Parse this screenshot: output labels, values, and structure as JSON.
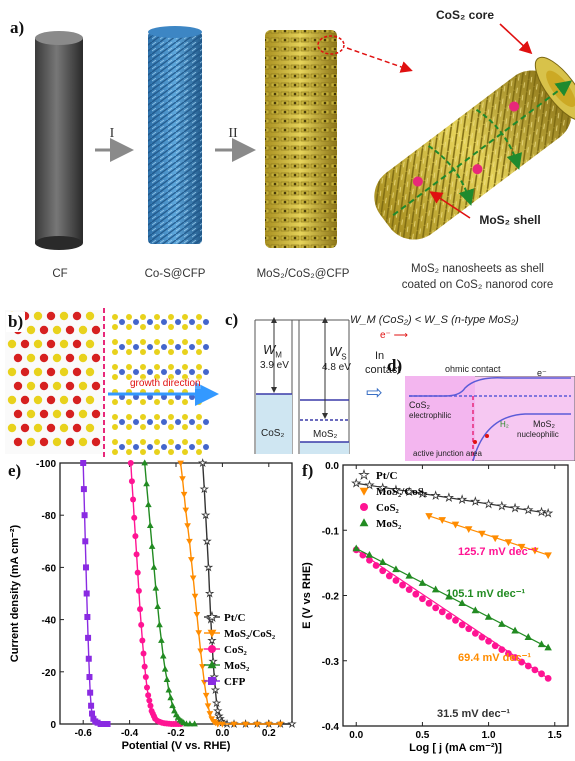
{
  "panel_a": {
    "label": "a)",
    "steps": [
      "I",
      "II"
    ],
    "captions": {
      "cf": "CF",
      "cos_cfp": "Co-S@CFP",
      "mos2_cos2_cfp": "MoS₂/CoS₂@CFP",
      "nanosheets_line1": "MoS₂ nanosheets as shell",
      "nanosheets_line2": "coated on CoS₂ nanorod core"
    },
    "callouts": {
      "core": "CoS₂ core",
      "shell": "MoS₂ shell"
    }
  },
  "panel_b": {
    "label": "b)",
    "growth_text": "growth direction"
  },
  "panel_c": {
    "label": "c)",
    "wm_symbol": "W",
    "wm_sub": "M",
    "wm_value": "3.9 eV",
    "ws_symbol": "W",
    "ws_sub": "S",
    "ws_value": "4.8 eV",
    "cos2_label": "CoS₂",
    "mos2_label": "MoS₂",
    "relation": "W_M (CoS₂) < W_S (n-type  MoS₂)",
    "electron": "e⁻",
    "in_contact_1": "In",
    "in_contact_2": "contact"
  },
  "panel_d": {
    "label": "d)",
    "ohmic": "ohmic contact",
    "electron": "e⁻",
    "cos2_title": "CoS₂",
    "cos2_sub": "electrophilic",
    "mos2_title": "MoS₂",
    "mos2_sub": "nucleophilic",
    "active": "active junction area",
    "h2": "H₂"
  },
  "chart_data": [
    {
      "panel": "e)",
      "type": "line",
      "xlabel": "Potential (V vs. RHE)",
      "ylabel": "Current density (mA cm⁻²)",
      "xlim": [
        -0.7,
        0.3
      ],
      "ylim": [
        -100,
        0
      ],
      "xticks": [
        -0.6,
        -0.4,
        -0.2,
        0.0,
        0.2
      ],
      "xtick_labels": [
        "-0.6",
        "-0.4",
        "-0.2",
        "0.0",
        "0.2"
      ],
      "yticks": [
        0,
        -20,
        -40,
        -60,
        -80,
        -100
      ],
      "ytick_labels": [
        "0",
        "-20",
        "-40",
        "-60",
        "-80",
        "-100"
      ],
      "legend_position": "right",
      "series": [
        {
          "name": "Pt/C",
          "color": "#333333",
          "marker": "star",
          "x": [
            -0.085,
            -0.078,
            -0.072,
            -0.066,
            -0.06,
            -0.055,
            -0.05,
            -0.045,
            -0.04,
            -0.035,
            -0.03,
            -0.025,
            -0.02,
            -0.015,
            -0.01,
            -0.005,
            0.0,
            0.02,
            0.05,
            0.1,
            0.15,
            0.2,
            0.25,
            0.3
          ],
          "y": [
            -100,
            -90,
            -80,
            -70,
            -60,
            -50,
            -40,
            -32,
            -24,
            -18,
            -13,
            -8,
            -5,
            -3,
            -2,
            -1,
            -0.5,
            0,
            0,
            0,
            0,
            0,
            0,
            0
          ]
        },
        {
          "name": "MoS₂/CoS₂",
          "color": "#ff8c00",
          "marker": "triangle-down",
          "x": [
            -0.18,
            -0.172,
            -0.165,
            -0.158,
            -0.15,
            -0.142,
            -0.134,
            -0.126,
            -0.118,
            -0.11,
            -0.102,
            -0.094,
            -0.086,
            -0.078,
            -0.07,
            -0.062,
            -0.054,
            -0.046,
            -0.038,
            -0.03,
            -0.02,
            0.0,
            0.05,
            0.1,
            0.15,
            0.2,
            0.25
          ],
          "y": [
            -100,
            -94,
            -88,
            -82,
            -76,
            -70,
            -63,
            -56,
            -49,
            -42,
            -35,
            -28,
            -22,
            -16,
            -11,
            -7,
            -4,
            -2,
            -1,
            -0.5,
            0,
            0,
            0,
            0,
            0,
            0,
            0
          ]
        },
        {
          "name": "CoS₂",
          "color": "#ff1493",
          "marker": "circle",
          "x": [
            -0.395,
            -0.39,
            -0.385,
            -0.38,
            -0.375,
            -0.37,
            -0.365,
            -0.36,
            -0.355,
            -0.35,
            -0.345,
            -0.34,
            -0.335,
            -0.33,
            -0.325,
            -0.32,
            -0.315,
            -0.31,
            -0.305,
            -0.3,
            -0.295,
            -0.29,
            -0.28,
            -0.27,
            -0.26,
            -0.25,
            -0.24,
            -0.23,
            -0.22,
            -0.21,
            -0.2,
            -0.19,
            -0.18
          ],
          "y": [
            -100,
            -93,
            -86,
            -79,
            -72,
            -65,
            -58,
            -51,
            -44,
            -38,
            -32,
            -27,
            -22,
            -18,
            -14,
            -11,
            -9,
            -7,
            -5,
            -4,
            -3,
            -2,
            -1.2,
            -0.8,
            -0.5,
            -0.3,
            -0.2,
            -0.1,
            0,
            0,
            0,
            0,
            0
          ]
        },
        {
          "name": "MoS₂",
          "color": "#228b22",
          "marker": "triangle-up",
          "x": [
            -0.335,
            -0.327,
            -0.319,
            -0.311,
            -0.303,
            -0.295,
            -0.287,
            -0.279,
            -0.271,
            -0.263,
            -0.255,
            -0.247,
            -0.239,
            -0.231,
            -0.223,
            -0.215,
            -0.207,
            -0.199,
            -0.191,
            -0.183,
            -0.175,
            -0.167,
            -0.155,
            -0.14,
            -0.12
          ],
          "y": [
            -100,
            -92,
            -84,
            -76,
            -68,
            -60,
            -52,
            -45,
            -38,
            -32,
            -26,
            -21,
            -17,
            -13,
            -10,
            -7,
            -5,
            -3.5,
            -2.5,
            -1.5,
            -1,
            -0.5,
            0,
            0,
            0
          ]
        },
        {
          "name": "CFP",
          "color": "#8a2be2",
          "marker": "square",
          "x": [
            -0.6,
            -0.597,
            -0.594,
            -0.591,
            -0.588,
            -0.585,
            -0.582,
            -0.579,
            -0.576,
            -0.573,
            -0.57,
            -0.566,
            -0.562,
            -0.556,
            -0.548,
            -0.538,
            -0.525,
            -0.51,
            -0.495
          ],
          "y": [
            -100,
            -90,
            -80,
            -70,
            -60,
            -50,
            -41,
            -33,
            -25,
            -18,
            -12,
            -7,
            -4,
            -2,
            -1,
            -0.5,
            0,
            0,
            0
          ]
        }
      ]
    },
    {
      "panel": "f)",
      "type": "scatter",
      "xlabel": "Log [ j (mA cm⁻²)]",
      "ylabel": "E (V vs RHE)",
      "xlim": [
        -0.1,
        1.6
      ],
      "ylim": [
        0.0,
        -0.4
      ],
      "xticks": [
        0.0,
        0.5,
        1.0,
        1.5
      ],
      "xtick_labels": [
        "0.0",
        "0.5",
        "1.0",
        "1.5"
      ],
      "yticks": [
        0.0,
        -0.1,
        -0.2,
        -0.3,
        -0.4
      ],
      "ytick_labels": [
        "0.0",
        "-0.1",
        "-0.2",
        "-0.3",
        "-0.4"
      ],
      "legend_position": "top-left",
      "series": [
        {
          "name": "Pt/C",
          "color": "#333333",
          "marker": "star",
          "slope_label": "31.5 mV dec⁻¹",
          "x": [
            0.0,
            0.1,
            0.2,
            0.3,
            0.4,
            0.5,
            0.6,
            0.7,
            0.8,
            0.9,
            1.0,
            1.1,
            1.2,
            1.3,
            1.4,
            1.45
          ],
          "y": [
            -0.028,
            -0.031,
            -0.035,
            -0.038,
            -0.041,
            -0.044,
            -0.047,
            -0.05,
            -0.053,
            -0.056,
            -0.06,
            -0.063,
            -0.066,
            -0.069,
            -0.072,
            -0.074
          ]
        },
        {
          "name": "MoS₂/CoS₂",
          "color": "#ff8c00",
          "marker": "triangle-down",
          "slope_label": "69.4 mV dec⁻¹",
          "x": [
            0.55,
            0.65,
            0.75,
            0.85,
            0.95,
            1.05,
            1.15,
            1.25,
            1.35,
            1.45
          ],
          "y": [
            -0.078,
            -0.084,
            -0.091,
            -0.098,
            -0.105,
            -0.112,
            -0.118,
            -0.125,
            -0.131,
            -0.138
          ]
        },
        {
          "name": "CoS₂",
          "color": "#ff1493",
          "marker": "circle",
          "slope_label": "125.7 mV dec⁻¹",
          "x": [
            0.0,
            0.05,
            0.1,
            0.15,
            0.2,
            0.25,
            0.3,
            0.35,
            0.4,
            0.45,
            0.5,
            0.55,
            0.6,
            0.65,
            0.7,
            0.75,
            0.8,
            0.85,
            0.9,
            0.95,
            1.0,
            1.05,
            1.1,
            1.15,
            1.2,
            1.25,
            1.3,
            1.35,
            1.4,
            1.45
          ],
          "y": [
            -0.13,
            -0.138,
            -0.146,
            -0.154,
            -0.162,
            -0.17,
            -0.177,
            -0.184,
            -0.191,
            -0.198,
            -0.205,
            -0.212,
            -0.219,
            -0.225,
            -0.232,
            -0.238,
            -0.245,
            -0.251,
            -0.258,
            -0.264,
            -0.27,
            -0.277,
            -0.283,
            -0.289,
            -0.295,
            -0.302,
            -0.308,
            -0.314,
            -0.32,
            -0.327
          ]
        },
        {
          "name": "MoS₂",
          "color": "#228b22",
          "marker": "triangle-up",
          "slope_label": "105.1 mV dec⁻¹",
          "x": [
            0.0,
            0.1,
            0.2,
            0.3,
            0.4,
            0.5,
            0.6,
            0.7,
            0.8,
            0.9,
            1.0,
            1.1,
            1.2,
            1.3,
            1.4,
            1.45
          ],
          "y": [
            -0.128,
            -0.138,
            -0.149,
            -0.16,
            -0.17,
            -0.181,
            -0.191,
            -0.202,
            -0.212,
            -0.223,
            -0.233,
            -0.244,
            -0.254,
            -0.264,
            -0.275,
            -0.28
          ]
        }
      ]
    }
  ]
}
